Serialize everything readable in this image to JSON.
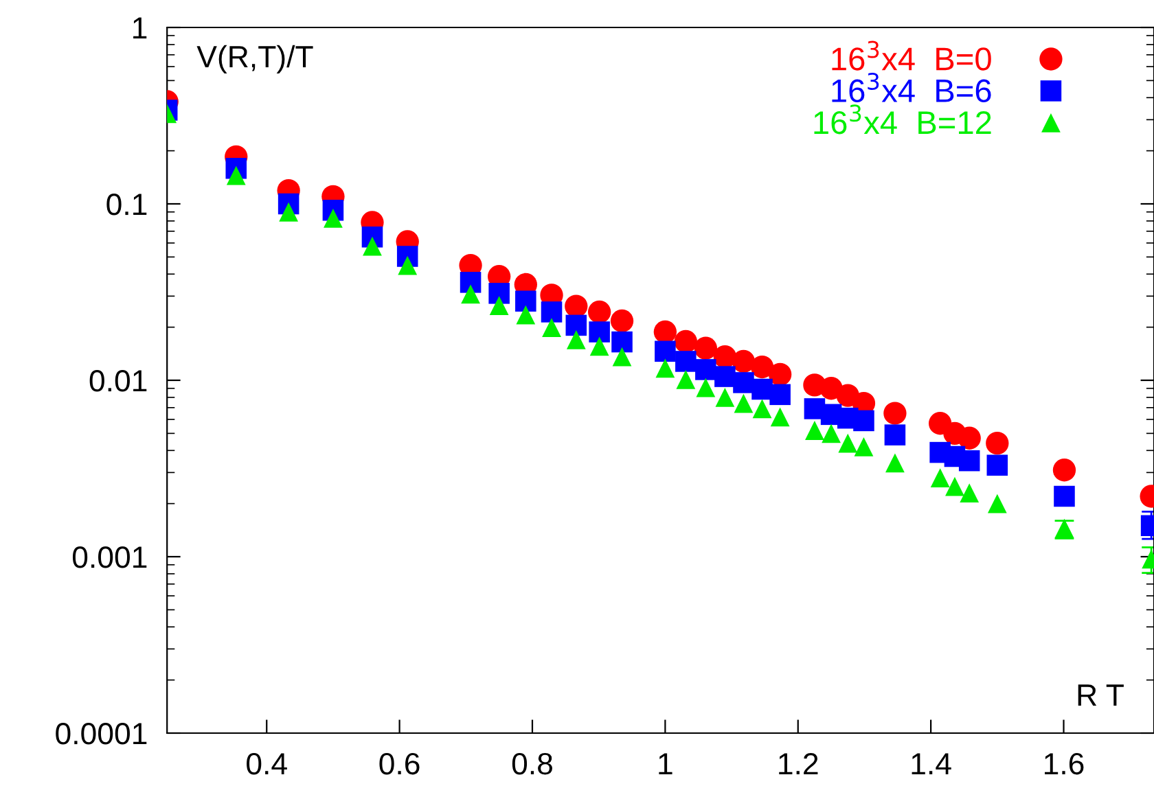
{
  "chart_data": {
    "type": "scatter",
    "xlabel": "R T",
    "ylabel": "V(R,T)/T",
    "x": [
      0.25,
      0.354,
      0.433,
      0.5,
      0.559,
      0.612,
      0.707,
      0.75,
      0.79,
      0.829,
      0.866,
      0.901,
      0.935,
      1.0,
      1.031,
      1.061,
      1.09,
      1.118,
      1.146,
      1.173,
      1.225,
      1.25,
      1.275,
      1.299,
      1.346,
      1.414,
      1.436,
      1.458,
      1.5,
      1.601,
      1.732
    ],
    "series": [
      {
        "name": "16$^{3}$x4  B=0",
        "color": "#ff0000",
        "marker": "circle",
        "values": [
          0.38,
          0.185,
          0.119,
          0.11,
          0.0785,
          0.0611,
          0.0448,
          0.0388,
          0.0349,
          0.0304,
          0.0263,
          0.0244,
          0.0217,
          0.0188,
          0.0166,
          0.0152,
          0.0136,
          0.0128,
          0.0119,
          0.0108,
          0.0094,
          0.009,
          0.0082,
          0.0074,
          0.0065,
          0.0057,
          0.005,
          0.0047,
          0.0044,
          0.0031,
          0.0022
        ]
      },
      {
        "name": "16$^{3}$x4  B=6",
        "color": "#0000ff",
        "marker": "square",
        "values": [
          0.34,
          0.159,
          0.1,
          0.092,
          0.0649,
          0.0504,
          0.0359,
          0.0311,
          0.0281,
          0.0244,
          0.0205,
          0.0188,
          0.0165,
          0.0146,
          0.0128,
          0.0115,
          0.0105,
          0.0097,
          0.0089,
          0.0083,
          0.0069,
          0.0064,
          0.0061,
          0.0059,
          0.0049,
          0.0039,
          0.0037,
          0.0035,
          0.0033,
          0.0022,
          0.0015
        ],
        "errors": [
          null,
          null,
          null,
          null,
          null,
          null,
          null,
          null,
          null,
          null,
          null,
          null,
          null,
          null,
          null,
          null,
          null,
          null,
          null,
          null,
          null,
          null,
          null,
          null,
          null,
          null,
          null,
          null,
          null,
          null,
          [
            0.00126,
            0.0018
          ]
        ]
      },
      {
        "name": "16$^{3}$x4  B=12",
        "color": "#00ee00",
        "marker": "triangle",
        "values": [
          0.325,
          0.145,
          0.09,
          0.083,
          0.0576,
          0.0448,
          0.0308,
          0.0265,
          0.0235,
          0.0199,
          0.017,
          0.0156,
          0.0136,
          0.0117,
          0.0101,
          0.0091,
          0.008,
          0.0074,
          0.0069,
          0.0062,
          0.0052,
          0.005,
          0.0044,
          0.0042,
          0.0034,
          0.0028,
          0.0025,
          0.0023,
          0.002,
          0.00145,
          0.00097
        ],
        "errors": [
          null,
          null,
          null,
          null,
          null,
          null,
          null,
          null,
          null,
          null,
          null,
          null,
          null,
          null,
          null,
          null,
          null,
          null,
          null,
          null,
          null,
          null,
          null,
          null,
          null,
          null,
          null,
          null,
          null,
          [
            0.00127,
            0.0016
          ],
          [
            0.00081,
            0.00113
          ]
        ]
      }
    ],
    "log": "y",
    "xlim": [
      0.25,
      1.736
    ],
    "ylim": [
      0.0001,
      1
    ],
    "xticks": [
      0.4,
      0.6,
      0.8,
      1,
      1.2,
      1.4,
      1.6
    ],
    "yticks": [
      {
        "value": 0.0001,
        "label": "0.0001"
      },
      {
        "value": 0.001,
        "label": "0.001"
      },
      {
        "value": 0.01,
        "label": "0.01"
      },
      {
        "value": 0.1,
        "label": "0.1"
      },
      1
    ],
    "grid": false,
    "legend": "top right"
  }
}
